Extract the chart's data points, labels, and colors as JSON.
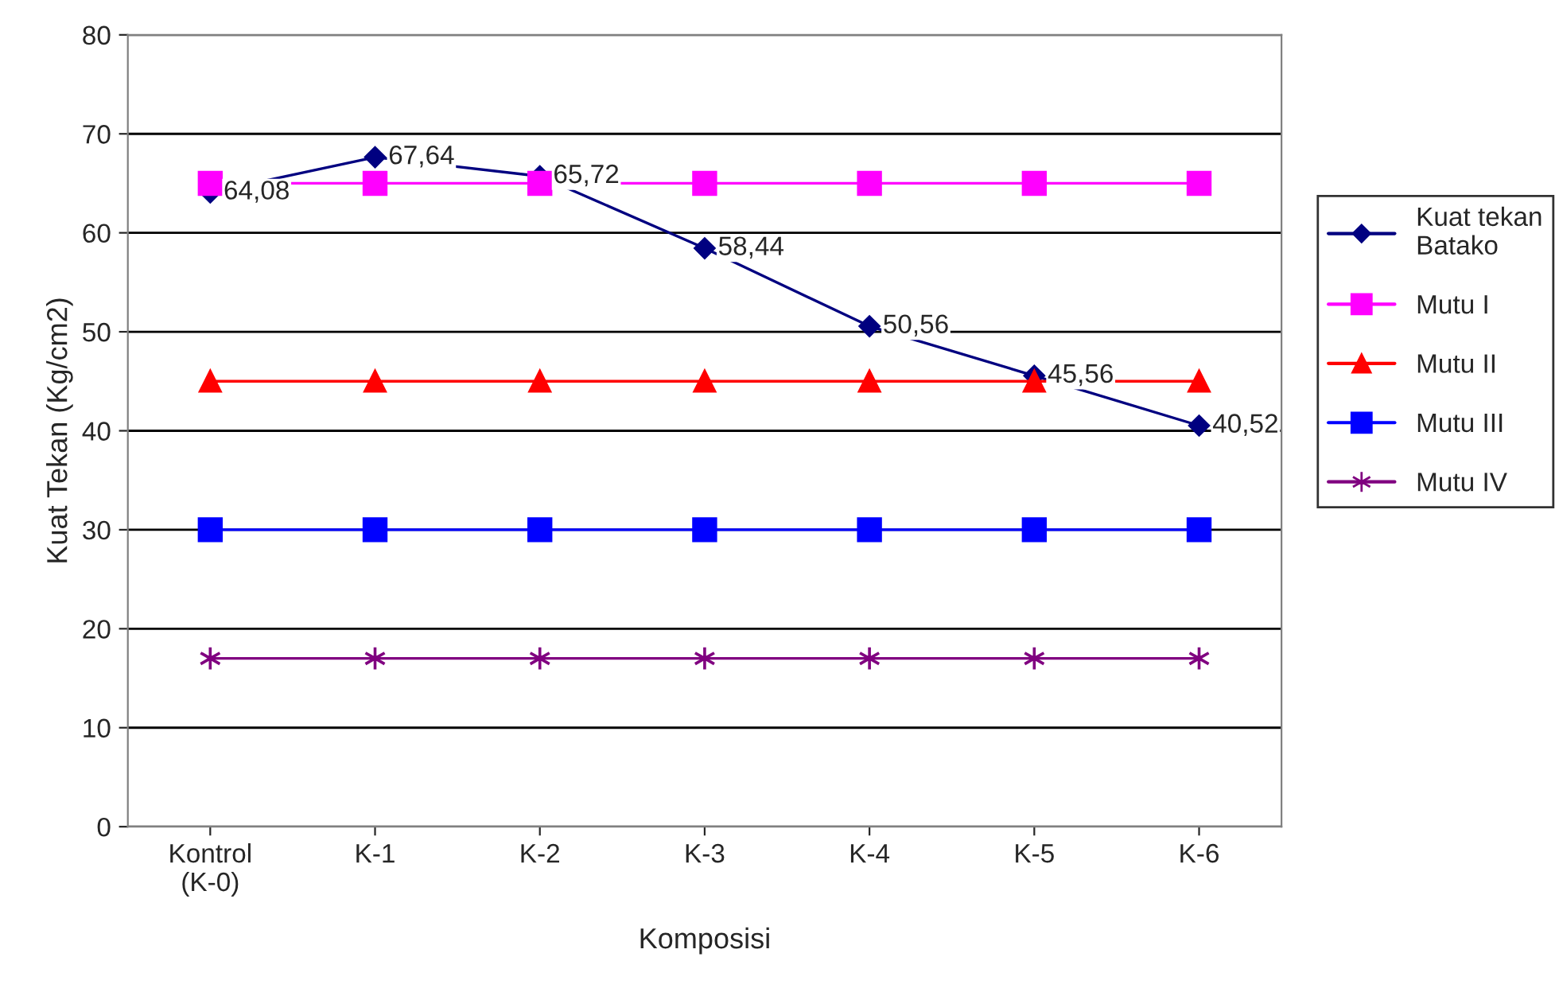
{
  "chart_data": {
    "type": "line",
    "xlabel": "Komposisi",
    "ylabel": "Kuat Tekan (Kg/cm2)",
    "categories": [
      "Kontrol\n(K-0)",
      "K-1",
      "K-2",
      "K-3",
      "K-4",
      "K-5",
      "K-6"
    ],
    "series": [
      {
        "name": "Kuat tekan\nBatako",
        "color": "#000080",
        "marker": "diamond",
        "values": [
          64.08,
          67.64,
          65.72,
          58.44,
          50.56,
          45.56,
          40.52
        ],
        "value_labels": [
          "64,08",
          "67,64",
          "65,72",
          "58,44",
          "50,56",
          "45,56",
          "40,52"
        ]
      },
      {
        "name": "Mutu I",
        "color": "#ff00ff",
        "marker": "square",
        "values": [
          65,
          65,
          65,
          65,
          65,
          65,
          65
        ]
      },
      {
        "name": "Mutu II",
        "color": "#ff0000",
        "marker": "triangle",
        "values": [
          45,
          45,
          45,
          45,
          45,
          45,
          45
        ]
      },
      {
        "name": "Mutu III",
        "color": "#0000ff",
        "marker": "square",
        "values": [
          30,
          30,
          30,
          30,
          30,
          30,
          30
        ]
      },
      {
        "name": "Mutu IV",
        "color": "#800080",
        "marker": "cross",
        "values": [
          17,
          17,
          17,
          17,
          17,
          17,
          17
        ]
      }
    ],
    "ylim": [
      0,
      80
    ],
    "yticks": [
      0,
      10,
      20,
      30,
      40,
      50,
      60,
      70,
      80
    ],
    "grid": "y",
    "legend": "right"
  }
}
